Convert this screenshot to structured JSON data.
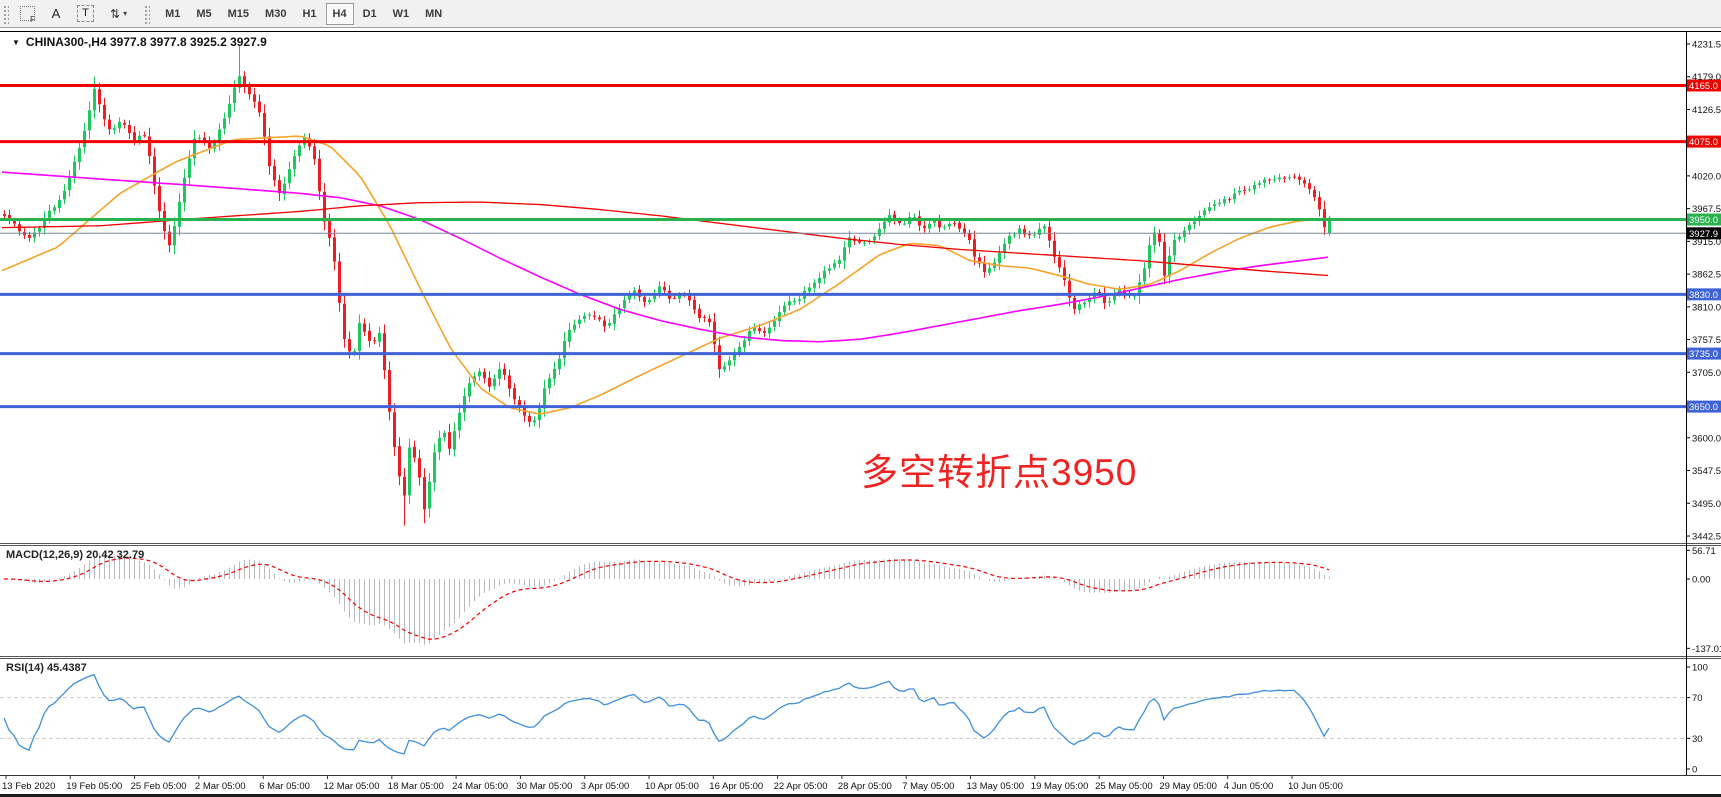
{
  "toolbar": {
    "tools": {
      "f_tool": "F",
      "text_label_tool": "A",
      "text_tool": "T",
      "arrows_tool": "⇅",
      "arrows_caret": "▾"
    },
    "timeframes": [
      "M1",
      "M5",
      "M15",
      "M30",
      "H1",
      "H4",
      "D1",
      "W1",
      "MN"
    ],
    "active_timeframe": "H4"
  },
  "chart": {
    "header": {
      "dropdown": "▼",
      "symbol_period": "CHINA300-,H4",
      "ohlc": "3977.8 3977.8 3925.2 3927.9"
    },
    "annotation": {
      "text": "多空转折点3950",
      "color": "#f12222"
    }
  },
  "indicators": {
    "macd_label": "MACD(12,26,9) 20.42 32.79",
    "rsi_label": "RSI(14) 45.4387"
  },
  "chart_data": {
    "type": "candlestick",
    "symbol": "CHINA300-",
    "period": "H4",
    "current_ohlc": {
      "open": 3977.8,
      "high": 3977.8,
      "low": 3925.2,
      "close": 3927.9
    },
    "colors": {
      "bull": "#1fc75f",
      "bear": "#ee1c23",
      "ma_fast": "#f5a329",
      "ma_mid": "#ff00ff",
      "ma_slow": "#f20000",
      "macd_hist": "#b9b9b9",
      "macd_signal": "#f20000",
      "rsi_line": "#3f8fdc",
      "level_red": "#f20000",
      "level_green": "#28b14c",
      "level_blue": "#3e63d6",
      "current_price_line": "#778899",
      "current_price_bg": "#000000"
    },
    "y_axis": {
      "ticks": [
        4231.5,
        4179.0,
        4126.5,
        4020.0,
        3967.5,
        3915.0,
        3862.5,
        3810.0,
        3757.5,
        3705.0,
        3600.0,
        3547.5,
        3495.0,
        3442.5
      ],
      "top_price": 4231.5,
      "bottom_price": 3442.5
    },
    "levels": [
      {
        "price": 4165.0,
        "label": "4165.0",
        "color": "#f20000",
        "width": 3
      },
      {
        "price": 4075.0,
        "label": "4075.0",
        "color": "#f20000",
        "width": 3
      },
      {
        "price": 3950.0,
        "label": "3950.0",
        "color": "#28b14c",
        "width": 3
      },
      {
        "price": 3927.9,
        "label": "3927.9",
        "color": "#778899",
        "width": 1,
        "label_bg": "#000000",
        "current": true
      },
      {
        "price": 3830.0,
        "label": "3830.0",
        "color": "#3e63d6",
        "width": 3
      },
      {
        "price": 3735.0,
        "label": "3735.0",
        "color": "#3e63d6",
        "width": 3
      },
      {
        "price": 3650.0,
        "label": "3650.0",
        "color": "#3e63d6",
        "width": 3
      }
    ],
    "close_path": [
      [
        2,
        3955
      ],
      [
        30,
        3920
      ],
      [
        66,
        4000
      ],
      [
        85,
        4100
      ],
      [
        94,
        4158
      ],
      [
        108,
        4090
      ],
      [
        120,
        4110
      ],
      [
        131,
        4080
      ],
      [
        145,
        4085
      ],
      [
        158,
        3965
      ],
      [
        170,
        3905
      ],
      [
        180,
        3990
      ],
      [
        195,
        4090
      ],
      [
        210,
        4060
      ],
      [
        225,
        4120
      ],
      [
        239,
        4180
      ],
      [
        248,
        4152
      ],
      [
        259,
        4125
      ],
      [
        270,
        4030
      ],
      [
        280,
        3990
      ],
      [
        295,
        4060
      ],
      [
        305,
        4085
      ],
      [
        315,
        4040
      ],
      [
        323,
        3950
      ],
      [
        333,
        3898
      ],
      [
        342,
        3770
      ],
      [
        352,
        3722
      ],
      [
        360,
        3790
      ],
      [
        370,
        3748
      ],
      [
        380,
        3772
      ],
      [
        388,
        3652
      ],
      [
        396,
        3562
      ],
      [
        404,
        3505
      ],
      [
        410,
        3598
      ],
      [
        418,
        3545
      ],
      [
        424,
        3488
      ],
      [
        434,
        3575
      ],
      [
        442,
        3615
      ],
      [
        450,
        3582
      ],
      [
        460,
        3645
      ],
      [
        470,
        3690
      ],
      [
        480,
        3706
      ],
      [
        490,
        3676
      ],
      [
        500,
        3716
      ],
      [
        508,
        3686
      ],
      [
        516,
        3656
      ],
      [
        526,
        3630
      ],
      [
        536,
        3628
      ],
      [
        546,
        3690
      ],
      [
        556,
        3712
      ],
      [
        566,
        3768
      ],
      [
        578,
        3790
      ],
      [
        592,
        3800
      ],
      [
        606,
        3772
      ],
      [
        620,
        3812
      ],
      [
        634,
        3840
      ],
      [
        646,
        3816
      ],
      [
        658,
        3846
      ],
      [
        670,
        3820
      ],
      [
        682,
        3836
      ],
      [
        695,
        3800
      ],
      [
        709,
        3786
      ],
      [
        720,
        3702
      ],
      [
        730,
        3726
      ],
      [
        740,
        3752
      ],
      [
        752,
        3776
      ],
      [
        764,
        3766
      ],
      [
        776,
        3796
      ],
      [
        788,
        3816
      ],
      [
        800,
        3826
      ],
      [
        812,
        3846
      ],
      [
        824,
        3866
      ],
      [
        838,
        3886
      ],
      [
        850,
        3920
      ],
      [
        862,
        3906
      ],
      [
        875,
        3926
      ],
      [
        888,
        3956
      ],
      [
        902,
        3940
      ],
      [
        912,
        3956
      ],
      [
        922,
        3936
      ],
      [
        932,
        3950
      ],
      [
        942,
        3936
      ],
      [
        952,
        3946
      ],
      [
        966,
        3930
      ],
      [
        976,
        3880
      ],
      [
        986,
        3866
      ],
      [
        996,
        3890
      ],
      [
        1008,
        3920
      ],
      [
        1020,
        3936
      ],
      [
        1031,
        3920
      ],
      [
        1043,
        3946
      ],
      [
        1053,
        3896
      ],
      [
        1063,
        3856
      ],
      [
        1073,
        3806
      ],
      [
        1083,
        3816
      ],
      [
        1095,
        3836
      ],
      [
        1107,
        3812
      ],
      [
        1119,
        3842
      ],
      [
        1131,
        3822
      ],
      [
        1143,
        3862
      ],
      [
        1152,
        3928
      ],
      [
        1158,
        3930
      ],
      [
        1164,
        3858
      ],
      [
        1172,
        3918
      ],
      [
        1180,
        3926
      ],
      [
        1190,
        3944
      ],
      [
        1200,
        3958
      ],
      [
        1212,
        3972
      ],
      [
        1224,
        3980
      ],
      [
        1236,
        3992
      ],
      [
        1248,
        4000
      ],
      [
        1260,
        4012
      ],
      [
        1272,
        4018
      ],
      [
        1282,
        4012
      ],
      [
        1292,
        4020
      ],
      [
        1302,
        4008
      ],
      [
        1312,
        3996
      ],
      [
        1320,
        3962
      ],
      [
        1326,
        3930
      ],
      [
        1330,
        3952
      ]
    ],
    "ma_lines": [
      {
        "name": "ma-fast-orange",
        "color": "#f5a329",
        "width": 1.6,
        "points": [
          [
            2,
            3868
          ],
          [
            58,
            3906
          ],
          [
            120,
            3992
          ],
          [
            175,
            4042
          ],
          [
            233,
            4078
          ],
          [
            300,
            4084
          ],
          [
            330,
            4068
          ],
          [
            360,
            4020
          ],
          [
            390,
            3940
          ],
          [
            420,
            3840
          ],
          [
            450,
            3745
          ],
          [
            480,
            3680
          ],
          [
            510,
            3648
          ],
          [
            540,
            3638
          ],
          [
            570,
            3648
          ],
          [
            600,
            3668
          ],
          [
            640,
            3700
          ],
          [
            680,
            3730
          ],
          [
            720,
            3760
          ],
          [
            760,
            3780
          ],
          [
            800,
            3806
          ],
          [
            840,
            3848
          ],
          [
            880,
            3894
          ],
          [
            910,
            3912
          ],
          [
            940,
            3908
          ],
          [
            970,
            3884
          ],
          [
            1000,
            3876
          ],
          [
            1030,
            3872
          ],
          [
            1060,
            3860
          ],
          [
            1090,
            3846
          ],
          [
            1120,
            3838
          ],
          [
            1150,
            3846
          ],
          [
            1180,
            3868
          ],
          [
            1210,
            3896
          ],
          [
            1240,
            3920
          ],
          [
            1270,
            3938
          ],
          [
            1300,
            3948
          ],
          [
            1330,
            3952
          ]
        ]
      },
      {
        "name": "ma-mid-magenta",
        "color": "#ff00ff",
        "width": 1.6,
        "points": [
          [
            2,
            4026
          ],
          [
            100,
            4015
          ],
          [
            200,
            4004
          ],
          [
            300,
            3992
          ],
          [
            340,
            3985
          ],
          [
            380,
            3972
          ],
          [
            420,
            3950
          ],
          [
            460,
            3920
          ],
          [
            500,
            3888
          ],
          [
            540,
            3858
          ],
          [
            580,
            3830
          ],
          [
            620,
            3806
          ],
          [
            660,
            3788
          ],
          [
            700,
            3774
          ],
          [
            740,
            3762
          ],
          [
            780,
            3756
          ],
          [
            820,
            3754
          ],
          [
            860,
            3758
          ],
          [
            900,
            3768
          ],
          [
            940,
            3780
          ],
          [
            980,
            3792
          ],
          [
            1020,
            3804
          ],
          [
            1060,
            3814
          ],
          [
            1100,
            3826
          ],
          [
            1140,
            3840
          ],
          [
            1180,
            3854
          ],
          [
            1220,
            3866
          ],
          [
            1260,
            3876
          ],
          [
            1300,
            3884
          ],
          [
            1330,
            3890
          ]
        ]
      },
      {
        "name": "ma-slow-red",
        "color": "#f20000",
        "width": 1.3,
        "points": [
          [
            2,
            3937
          ],
          [
            100,
            3940
          ],
          [
            200,
            3952
          ],
          [
            300,
            3963
          ],
          [
            360,
            3972
          ],
          [
            420,
            3977
          ],
          [
            480,
            3978
          ],
          [
            540,
            3974
          ],
          [
            600,
            3966
          ],
          [
            660,
            3956
          ],
          [
            720,
            3944
          ],
          [
            780,
            3932
          ],
          [
            840,
            3920
          ],
          [
            900,
            3910
          ],
          [
            960,
            3902
          ],
          [
            1020,
            3896
          ],
          [
            1080,
            3890
          ],
          [
            1140,
            3884
          ],
          [
            1200,
            3876
          ],
          [
            1260,
            3868
          ],
          [
            1330,
            3860
          ]
        ]
      }
    ],
    "macd": {
      "params": [
        12,
        26,
        9
      ],
      "values": [
        20.42,
        32.79
      ],
      "y_ticks": [
        {
          "v": 56.71,
          "label": "56.71"
        },
        {
          "v": 0,
          "label": "0.00"
        },
        {
          "v": -137.01,
          "label": "-137.01"
        }
      ]
    },
    "rsi": {
      "params": [
        14
      ],
      "value": 45.4387,
      "levels": [
        70,
        30
      ],
      "y_ticks": [
        {
          "v": 100,
          "label": "100"
        },
        {
          "v": 70,
          "label": "70"
        },
        {
          "v": 30,
          "label": "30"
        },
        {
          "v": 0,
          "label": "0"
        }
      ]
    },
    "x_axis": {
      "labels": [
        "13 Feb 2020",
        "19 Feb 05:00",
        "25 Feb 05:00",
        "2 Mar 05:00",
        "6 Mar 05:00",
        "12 Mar 05:00",
        "18 Mar 05:00",
        "24 Mar 05:00",
        "30 Mar 05:00",
        "3 Apr 05:00",
        "10 Apr 05:00",
        "16 Apr 05:00",
        "22 Apr 05:00",
        "28 Apr 05:00",
        "7 May 05:00",
        "13 May 05:00",
        "19 May 05:00",
        "25 May 05:00",
        "29 May 05:00",
        "4 Jun 05:00",
        "10 Jun 05:00"
      ]
    }
  }
}
